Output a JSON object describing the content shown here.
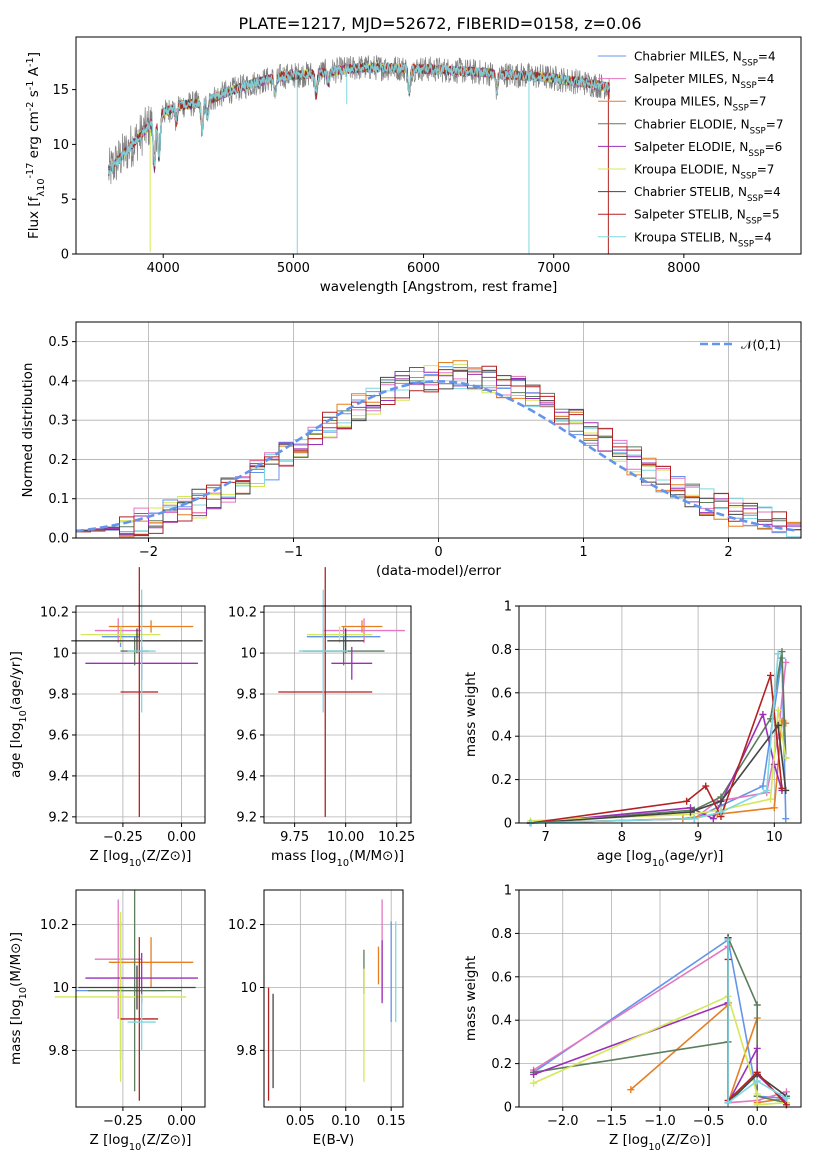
{
  "title": "PLATE=1217, MJD=52672, FIBERID=0158, z=0.06",
  "series_colors": [
    "#6495ed",
    "#e377c2",
    "#e67e22",
    "#5c7d5e",
    "#9b30b8",
    "#d4e85a",
    "#444444",
    "#b22222",
    "#7fd7e0"
  ],
  "chart_data": [
    {
      "id": "spectrum",
      "type": "line",
      "xlabel": "wavelength [Angstrom, rest frame]",
      "ylabel": "Flux [f_λ10^-17 erg cm^-2 s^-1 A^-1]",
      "xlim": [
        3330,
        8900
      ],
      "ylim": [
        0,
        19.8
      ],
      "xticks": [
        4000,
        5000,
        6000,
        7000,
        8000
      ],
      "yticks": [
        0,
        5,
        10,
        15
      ],
      "grid": false,
      "legend_position": "right",
      "legend": [
        "Chabrier MILES, N_SSP=4",
        "Salpeter MILES, N_SSP=4",
        "Kroupa MILES, N_SSP=7",
        "Chabrier ELODIE, N_SSP=7",
        "Salpeter ELODIE, N_SSP=6",
        "Kroupa ELODIE, N_SSP=7",
        "Chabrier STELIB, N_SSP=4",
        "Salpeter STELIB, N_SSP=5",
        "Kroupa STELIB, N_SSP=4"
      ],
      "data_range": [
        3580,
        7430
      ],
      "continuum": {
        "x": [
          3580,
          3650,
          3800,
          3950,
          4100,
          4300,
          4500,
          4700,
          4900,
          5100,
          5300,
          5500,
          5700,
          6000,
          6300,
          6600,
          6900,
          7200,
          7430
        ],
        "y": [
          7.5,
          8.5,
          10.5,
          12.5,
          13.5,
          13.8,
          14.8,
          15.6,
          16.2,
          16.4,
          16.7,
          17.0,
          17.0,
          16.9,
          16.7,
          16.4,
          16.2,
          15.7,
          15.2
        ]
      },
      "absorption_lines": [
        {
          "x": 3933,
          "depth": 4.5
        },
        {
          "x": 3968,
          "depth": 4.0
        },
        {
          "x": 4101,
          "depth": 1.5
        },
        {
          "x": 4300,
          "depth": 2.5
        },
        {
          "x": 4340,
          "depth": 1.5
        },
        {
          "x": 4861,
          "depth": 1.5
        },
        {
          "x": 5175,
          "depth": 2.0
        },
        {
          "x": 5270,
          "depth": 1.0
        },
        {
          "x": 5890,
          "depth": 2.2
        },
        {
          "x": 6563,
          "depth": 1.5
        }
      ],
      "spikes": [
        {
          "x": 5030,
          "to": 0
        },
        {
          "x": 3900,
          "to": 0.2
        },
        {
          "x": 6810,
          "to": 0
        },
        {
          "x": 7420,
          "to": 0
        },
        {
          "x": 5410,
          "to": 13.7
        }
      ]
    },
    {
      "id": "residuals",
      "type": "step",
      "xlabel": "(data-model)/error",
      "ylabel": "Normed distribution",
      "xlim": [
        -2.5,
        2.5
      ],
      "ylim": [
        0,
        0.55
      ],
      "xticks": [
        -2,
        -1,
        0,
        1,
        2
      ],
      "xtick_labels": [
        "−2",
        "−1",
        "0",
        "1",
        "2"
      ],
      "yticks": [
        0.0,
        0.1,
        0.2,
        0.3,
        0.4,
        0.5
      ],
      "ytick_labels": [
        "0.0",
        "0.1",
        "0.2",
        "0.3",
        "0.4",
        "0.5"
      ],
      "grid": true,
      "legend": [
        "𝒩(0,1)"
      ],
      "legend_position": "upper right",
      "normal_curve": {
        "mean": 0,
        "sigma": 1
      },
      "bin_width": 0.1
    },
    {
      "id": "age-vs-Z",
      "type": "errorbar",
      "xlabel": "Z [log10(Z/Z⊙)]",
      "ylabel": "age  [log10(age/yr)]",
      "xlim": [
        -0.45,
        0.1
      ],
      "ylim": [
        9.17,
        10.23
      ],
      "xticks": [
        -0.25,
        0.0
      ],
      "xtick_labels": [
        "−0.25",
        "0.00"
      ],
      "yticks": [
        9.2,
        9.4,
        9.6,
        9.8,
        10.0,
        10.2
      ],
      "grid": true,
      "points": [
        {
          "x": -0.26,
          "y": 10.08,
          "xerr": 0.08,
          "yerr": 0.05,
          "series": 0
        },
        {
          "x": -0.27,
          "y": 10.11,
          "xerr": 0.1,
          "yerr": 0.06,
          "series": 1
        },
        {
          "x": -0.13,
          "y": 10.13,
          "xerr": 0.18,
          "yerr": 0.03,
          "series": 2
        },
        {
          "x": -0.2,
          "y": 10.01,
          "xerr": 0.06,
          "yerr": 0.07,
          "series": 3
        },
        {
          "x": -0.17,
          "y": 9.95,
          "xerr": 0.24,
          "yerr": 0.08,
          "series": 4
        },
        {
          "x": -0.26,
          "y": 10.09,
          "xerr": 0.17,
          "yerr": 0.04,
          "series": 5
        },
        {
          "x": -0.19,
          "y": 10.06,
          "xerr": 0.28,
          "yerr": 0.06,
          "series": 6
        },
        {
          "x": -0.18,
          "y": 9.81,
          "xerr": 0.08,
          "yerr": 0.61,
          "series": 7
        },
        {
          "x": -0.17,
          "y": 10.01,
          "xerr": 0.06,
          "yerr": 0.3,
          "series": 8
        }
      ]
    },
    {
      "id": "age-vs-mass",
      "type": "errorbar",
      "xlabel": "mass [log10(M/M⊙)]",
      "ylabel": "",
      "xlim": [
        9.6,
        10.32
      ],
      "ylim": [
        9.17,
        10.23
      ],
      "xticks": [
        9.75,
        10.0,
        10.25
      ],
      "xtick_labels": [
        "9.75",
        "10.00",
        "10.25"
      ],
      "yticks": [
        9.2,
        9.4,
        9.6,
        9.8,
        10.0,
        10.2
      ],
      "grid": true,
      "points": [
        {
          "x": 9.99,
          "y": 10.08,
          "xerr": 0.18,
          "yerr": 0.05,
          "series": 0
        },
        {
          "x": 10.09,
          "y": 10.11,
          "xerr": 0.2,
          "yerr": 0.06,
          "series": 1
        },
        {
          "x": 10.08,
          "y": 10.13,
          "xerr": 0.1,
          "yerr": 0.03,
          "series": 2
        },
        {
          "x": 9.99,
          "y": 10.01,
          "xerr": 0.2,
          "yerr": 0.07,
          "series": 3
        },
        {
          "x": 10.03,
          "y": 9.95,
          "xerr": 0.1,
          "yerr": 0.08,
          "series": 4
        },
        {
          "x": 9.97,
          "y": 10.09,
          "xerr": 0.16,
          "yerr": 0.04,
          "series": 5
        },
        {
          "x": 10.0,
          "y": 10.06,
          "xerr": 0.09,
          "yerr": 0.06,
          "series": 6
        },
        {
          "x": 9.9,
          "y": 9.81,
          "xerr": 0.23,
          "yerr": 0.61,
          "series": 7
        },
        {
          "x": 9.89,
          "y": 10.01,
          "xerr": 0.12,
          "yerr": 0.3,
          "series": 8
        }
      ]
    },
    {
      "id": "massweight-vs-age",
      "type": "line",
      "xlabel": "age  [log10(age/yr)]",
      "ylabel": "mass weight",
      "xlim": [
        6.65,
        10.35
      ],
      "ylim": [
        0,
        1.0
      ],
      "xticks": [
        7,
        8,
        9,
        10
      ],
      "yticks": [
        0.0,
        0.2,
        0.4,
        0.6,
        0.8,
        1.0
      ],
      "grid": true,
      "series": [
        {
          "x": [
            6.8,
            8.95,
            9.3,
            9.85,
            10.1,
            10.15
          ],
          "y": [
            0.0,
            0.02,
            0.08,
            0.17,
            0.76,
            0.02
          ]
        },
        {
          "x": [
            6.8,
            8.95,
            9.25,
            9.9,
            10.05,
            10.15
          ],
          "y": [
            0.0,
            0.02,
            0.1,
            0.14,
            0.4,
            0.74
          ]
        },
        {
          "x": [
            6.8,
            8.8,
            9.25,
            10.0,
            10.1,
            10.15
          ],
          "y": [
            0.0,
            0.02,
            0.04,
            0.07,
            0.47,
            0.46
          ]
        },
        {
          "x": [
            6.8,
            8.95,
            9.3,
            9.95,
            10.1,
            10.15
          ],
          "y": [
            0.0,
            0.06,
            0.12,
            0.48,
            0.79,
            0.3
          ]
        },
        {
          "x": [
            6.8,
            8.9,
            9.2,
            9.85,
            10.0,
            10.1
          ],
          "y": [
            0.0,
            0.07,
            0.02,
            0.5,
            0.27,
            0.15
          ]
        },
        {
          "x": [
            6.8,
            8.9,
            9.3,
            9.95,
            10.05,
            10.15
          ],
          "y": [
            0.01,
            0.04,
            0.06,
            0.11,
            0.52,
            0.3
          ]
        },
        {
          "x": [
            6.8,
            8.9,
            9.3,
            10.05,
            10.15
          ],
          "y": [
            0.0,
            0.05,
            0.1,
            0.45,
            0.15
          ]
        },
        {
          "x": [
            6.8,
            8.85,
            9.1,
            9.3,
            9.95,
            10.1
          ],
          "y": [
            0.0,
            0.1,
            0.17,
            0.03,
            0.68,
            0.16
          ]
        },
        {
          "x": [
            6.8,
            8.95,
            9.3,
            9.9,
            10.05
          ],
          "y": [
            0.0,
            0.02,
            0.05,
            0.15,
            0.78
          ]
        }
      ]
    },
    {
      "id": "mass-vs-Z",
      "type": "errorbar",
      "xlabel": "Z [log10(Z/Z⊙)]",
      "ylabel": "mass [log10(M/M⊙)]",
      "xlim": [
        -0.45,
        0.1
      ],
      "ylim": [
        9.62,
        10.31
      ],
      "xticks": [
        -0.25,
        0.0
      ],
      "xtick_labels": [
        "−0.25",
        "0.00"
      ],
      "yticks": [
        9.8,
        10.0,
        10.2
      ],
      "grid": true,
      "points": [
        {
          "x": -0.26,
          "y": 9.99,
          "xerr": 0.19,
          "yerr": 0.22,
          "series": 0
        },
        {
          "x": -0.27,
          "y": 10.09,
          "xerr": 0.1,
          "yerr": 0.19,
          "series": 1
        },
        {
          "x": -0.13,
          "y": 10.08,
          "xerr": 0.18,
          "yerr": 0.08,
          "series": 2
        },
        {
          "x": -0.2,
          "y": 9.99,
          "xerr": 0.2,
          "yerr": 0.32,
          "series": 3
        },
        {
          "x": -0.17,
          "y": 10.03,
          "xerr": 0.24,
          "yerr": 0.08,
          "series": 4
        },
        {
          "x": -0.26,
          "y": 9.97,
          "xerr": 0.28,
          "yerr": 0.27,
          "series": 5
        },
        {
          "x": -0.19,
          "y": 10.0,
          "xerr": 0.25,
          "yerr": 0.07,
          "series": 6
        },
        {
          "x": -0.18,
          "y": 9.9,
          "xerr": 0.08,
          "yerr": 0.26,
          "series": 7
        },
        {
          "x": -0.17,
          "y": 9.89,
          "xerr": 0.06,
          "yerr": 0.09,
          "series": 8
        }
      ]
    },
    {
      "id": "mass-vs-EBV",
      "type": "errorbar",
      "xlabel": "E(B-V)",
      "ylabel": "",
      "xlim": [
        0.01,
        0.163
      ],
      "ylim": [
        9.62,
        10.31
      ],
      "xticks": [
        0.05,
        0.1,
        0.15
      ],
      "xtick_labels": [
        "0.05",
        "0.10",
        "0.15"
      ],
      "yticks": [
        9.8,
        10.0,
        10.2
      ],
      "grid": true,
      "points": [
        {
          "x": 0.15,
          "y": 10.05,
          "xerr": 0,
          "yerr": 0.16,
          "series": 0
        },
        {
          "x": 0.14,
          "y": 10.12,
          "xerr": 0,
          "yerr": 0.16,
          "series": 1
        },
        {
          "x": 0.136,
          "y": 10.07,
          "xerr": 0,
          "yerr": 0.06,
          "series": 2
        },
        {
          "x": 0.12,
          "y": 10.05,
          "xerr": 0,
          "yerr": 0.07,
          "series": 3
        },
        {
          "x": 0.14,
          "y": 10.05,
          "xerr": 0,
          "yerr": 0.1,
          "series": 4
        },
        {
          "x": 0.12,
          "y": 9.88,
          "xerr": 0,
          "yerr": 0.18,
          "series": 5
        },
        {
          "x": 0.02,
          "y": 9.83,
          "xerr": 0,
          "yerr": 0.15,
          "series": 6
        },
        {
          "x": 0.015,
          "y": 9.82,
          "xerr": 0,
          "yerr": 0.18,
          "series": 7
        },
        {
          "x": 0.155,
          "y": 10.05,
          "xerr": 0,
          "yerr": 0.16,
          "series": 8
        }
      ]
    },
    {
      "id": "massweight-vs-Z",
      "type": "line",
      "xlabel": "Z [log10(Z/Z⊙)]",
      "ylabel": "mass weight",
      "xlim": [
        -2.45,
        0.45
      ],
      "ylim": [
        0,
        1.0
      ],
      "xticks": [
        -2.0,
        -1.5,
        -1.0,
        -0.5,
        0.0
      ],
      "xtick_labels": [
        "−2.0",
        "−1.5",
        "−1.0",
        "−0.5",
        "0.0"
      ],
      "yticks": [
        0.0,
        0.2,
        0.4,
        0.6,
        0.8,
        1.0
      ],
      "grid": true,
      "series": [
        {
          "x": [
            -2.3,
            -0.3,
            0.0,
            0.3
          ],
          "y": [
            0.16,
            0.77,
            0.05,
            0.04
          ]
        },
        {
          "x": [
            -2.3,
            -0.3,
            -0.3,
            0.0,
            0.3
          ],
          "y": [
            0.17,
            0.74,
            0.02,
            0.03,
            0.07
          ]
        },
        {
          "x": [
            -1.3,
            -0.3,
            -0.3,
            0.0,
            0.0,
            0.3
          ],
          "y": [
            0.08,
            0.47,
            0.02,
            0.41,
            0.02,
            0.04
          ]
        },
        {
          "x": [
            -2.3,
            -0.3,
            -0.3,
            0.0,
            0.0,
            0.3
          ],
          "y": [
            0.16,
            0.3,
            0.78,
            0.47,
            0.05,
            0.02
          ]
        },
        {
          "x": [
            -2.3,
            -0.3,
            -0.3,
            0.0,
            0.0,
            0.3
          ],
          "y": [
            0.15,
            0.48,
            0.02,
            0.27,
            0.15,
            0.02
          ]
        },
        {
          "x": [
            -2.3,
            -0.3,
            0.0,
            0.0,
            0.3
          ],
          "y": [
            0.11,
            0.51,
            0.06,
            0.01,
            0.02
          ]
        },
        {
          "x": [
            -0.3,
            -0.3,
            0.0,
            0.3
          ],
          "y": [
            0.78,
            0.02,
            0.15,
            0.05
          ]
        },
        {
          "x": [
            -0.3,
            -0.3,
            0.0,
            0.3
          ],
          "y": [
            0.68,
            0.03,
            0.16,
            0.01
          ]
        },
        {
          "x": [
            -0.3,
            -0.3,
            0.0,
            0.3
          ],
          "y": [
            0.77,
            0.02,
            0.12,
            0.04
          ]
        }
      ]
    }
  ]
}
